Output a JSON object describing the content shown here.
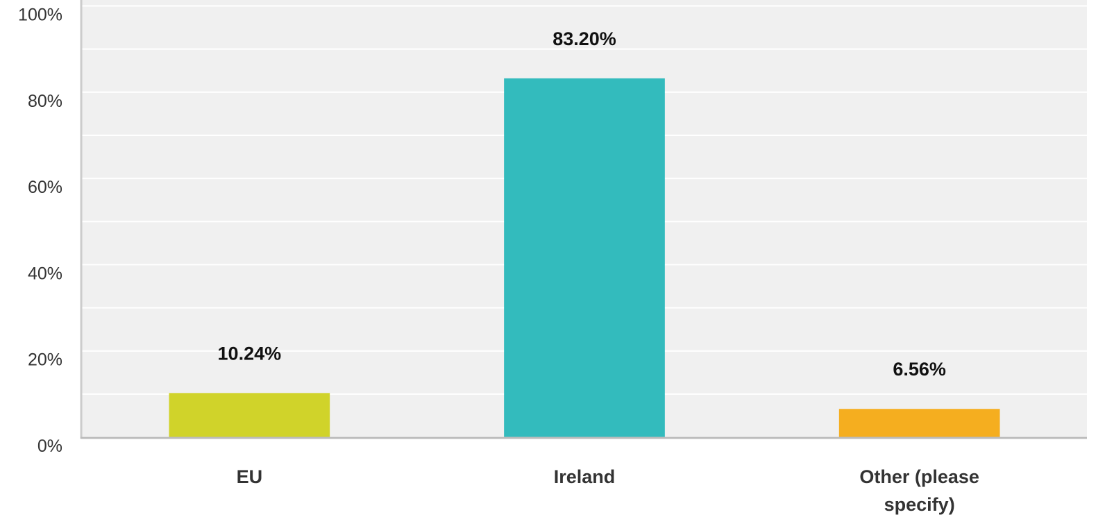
{
  "chart_data": {
    "type": "bar",
    "categories": [
      "EU",
      "Ireland",
      "Other (please specify)"
    ],
    "values": [
      10.24,
      83.2,
      6.56
    ],
    "value_labels": [
      "10.24%",
      "83.20%",
      "6.56%"
    ],
    "colors": [
      "#d0d32a",
      "#33bbbd",
      "#f5ae1f"
    ],
    "ylim": [
      0,
      100
    ],
    "yticks": [
      {
        "value": 0,
        "label": "0%"
      },
      {
        "value": 20,
        "label": "20%"
      },
      {
        "value": 40,
        "label": "40%"
      },
      {
        "value": 60,
        "label": "60%"
      },
      {
        "value": 80,
        "label": "80%"
      },
      {
        "value": 100,
        "label": "100%"
      }
    ],
    "minor_yticks": [
      10,
      30,
      50,
      70,
      90
    ],
    "grid": true
  }
}
